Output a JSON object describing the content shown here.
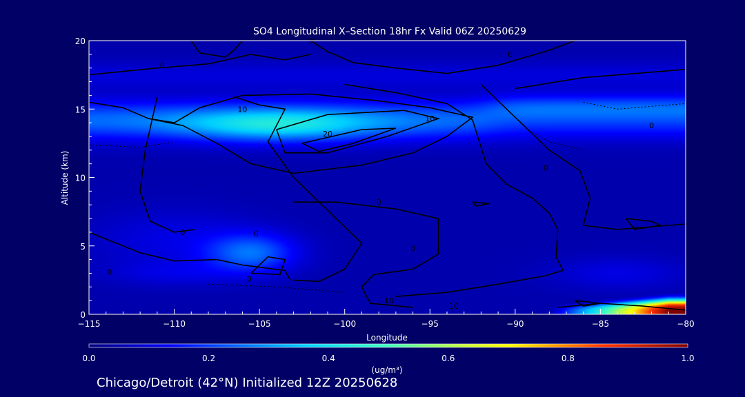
{
  "chart_data": {
    "type": "heatmap",
    "title": "SO4 Longitudinal X–Section 18hr  Fx Valid 06Z 20250629",
    "xlabel": "Longitude",
    "ylabel": "Altitude (km)",
    "xlim": [
      -115,
      -80
    ],
    "ylim": [
      0,
      20
    ],
    "x_ticks": [
      "−115",
      "−110",
      "−105",
      "−100",
      "−95",
      "−90",
      "−85",
      "−80"
    ],
    "x_tick_values": [
      -115,
      -110,
      -105,
      -100,
      -95,
      -90,
      -85,
      -80
    ],
    "y_ticks": [
      "0",
      "5",
      "10",
      "15",
      "20"
    ],
    "y_tick_values": [
      0,
      5,
      10,
      15,
      20
    ],
    "colorbar": {
      "min": 0.0,
      "max": 1.0,
      "ticks": [
        "0.0",
        "0.2",
        "0.4",
        "0.6",
        "0.8",
        "1.0"
      ],
      "tick_values": [
        0.0,
        0.2,
        0.4,
        0.6,
        0.8,
        1.0
      ],
      "unit_label": "(ug/m³)"
    },
    "contour_labels": [
      "0",
      "0",
      "0",
      "0",
      "10",
      "10",
      "20",
      "0",
      "10",
      "0",
      "0",
      "0",
      "0",
      "0",
      "10",
      "0"
    ],
    "fields": {
      "background": 0.05,
      "upper_band": {
        "lon": [
          -115,
          -80
        ],
        "alt": [
          12.5,
          16
        ],
        "peak": 0.36,
        "peak_lon": -104,
        "peak_alt": 13.8
      },
      "mid_plume": {
        "peak": 0.26,
        "peak_lon": -105.5,
        "peak_alt": 4.5
      },
      "surface_hotspot": {
        "lon": [
          -88,
          -80
        ],
        "alt": [
          0,
          1
        ],
        "peak": 1.0,
        "peak_lon": -81
      }
    }
  },
  "footer": {
    "text": "Chicago/Detroit (42°N) Initialized 12Z 20250628"
  },
  "colors": {
    "background": "#000066",
    "text": "#ffffff",
    "contour": "#000000"
  }
}
